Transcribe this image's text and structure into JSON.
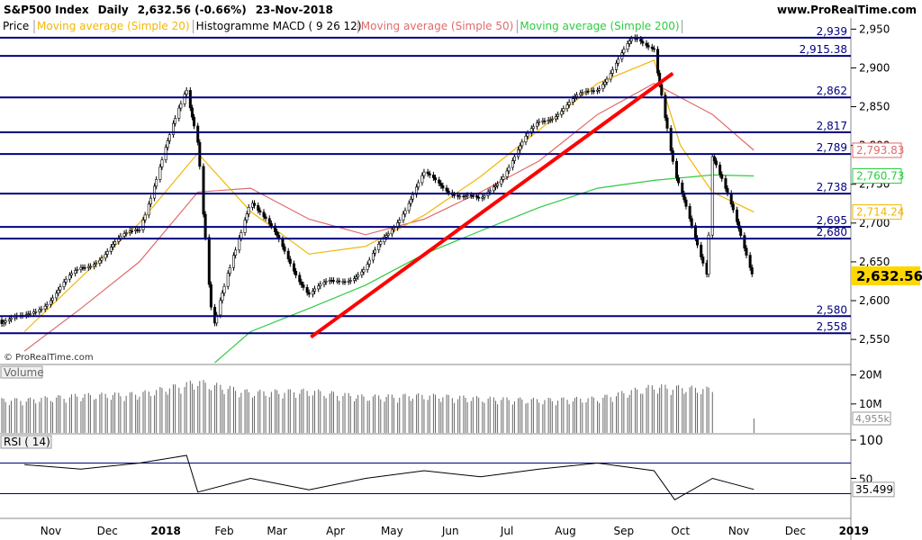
{
  "header": {
    "instrument": "S&P500 Index",
    "period": "Daily",
    "last": "2,632.56 (-0.66%)",
    "date": "23-Nov-2018",
    "site": "www.ProRealTime.com"
  },
  "legend": [
    {
      "label": "Price",
      "color": "#000000"
    },
    {
      "label": "Moving average (Simple 20)",
      "color": "#f2b705"
    },
    {
      "label": "Histogramme MACD ( 9 26 12)",
      "color": "#000000"
    },
    {
      "label": "Moving average (Simple 50)",
      "color": "#e06b6b"
    },
    {
      "label": "Moving average (Simple 200)",
      "color": "#2ecc40"
    }
  ],
  "watermark": "© ProRealTime.com",
  "colors": {
    "sma20": "#f2b705",
    "sma50": "#e06b6b",
    "sma200": "#2ecc40",
    "levels": "#00007f",
    "trendline": "#ff0000",
    "candle": "#000000",
    "last_badge": "#ffd700"
  },
  "chart_data": [
    {
      "type": "candlestick",
      "title": "S&P500 Index",
      "ylim": [
        2520,
        2962
      ],
      "y_ticks": [
        "2,950",
        "2,900",
        "2,850",
        "2,800",
        "2,750",
        "2,700",
        "2,650",
        "2,600",
        "2,550"
      ],
      "y_tick_values": [
        2950,
        2900,
        2850,
        2800,
        2750,
        2700,
        2650,
        2600,
        2550
      ],
      "x_labels": [
        "Nov",
        "Dec",
        "2018",
        "Feb",
        "Mar",
        "Apr",
        "May",
        "Jun",
        "Jul",
        "Aug",
        "Sep",
        "Oct",
        "Nov",
        "Dec",
        "2019"
      ],
      "x_label_dates": [
        "2017-11",
        "2017-12",
        "2018-01",
        "2018-02",
        "2018-03",
        "2018-04",
        "2018-05",
        "2018-06",
        "2018-07",
        "2018-08",
        "2018-09",
        "2018-10",
        "2018-11",
        "2018-12",
        "2019-01"
      ],
      "horizontal_levels": [
        {
          "value": 2939,
          "label": "2,939"
        },
        {
          "value": 2915.38,
          "label": "2,915.38"
        },
        {
          "value": 2862,
          "label": "2,862"
        },
        {
          "value": 2817,
          "label": "2,817"
        },
        {
          "value": 2789,
          "label": "2,789"
        },
        {
          "value": 2738,
          "label": "2,738"
        },
        {
          "value": 2695,
          "label": "2,695"
        },
        {
          "value": 2680,
          "label": "2,680"
        },
        {
          "value": 2580,
          "label": "2,580"
        },
        {
          "value": 2558,
          "label": "2,558"
        }
      ],
      "trendline": {
        "from": {
          "date": "2018-04-02",
          "value": 2553
        },
        "to": {
          "date": "2018-10-11",
          "value": 2893
        }
      },
      "last_value": {
        "value": 2632.56,
        "label": "2,632.56"
      },
      "series": [
        {
          "name": "Price",
          "dates": [
            "2017-11",
            "2017-12",
            "2018-01",
            "2018-01-26",
            "2018-02",
            "2018-02-09",
            "2018-03",
            "2018-04",
            "2018-05",
            "2018-06",
            "2018-07",
            "2018-08",
            "2018-09",
            "2018-09-20",
            "2018-10",
            "2018-10-12",
            "2018-10-29",
            "2018-11",
            "2018-11-23"
          ],
          "values": [
            2575,
            2640,
            2695,
            2872,
            2810,
            2560,
            2735,
            2610,
            2640,
            2760,
            2725,
            2830,
            2875,
            2935,
            2930,
            2760,
            2640,
            2790,
            2632.56
          ]
        },
        {
          "name": "Moving average (Simple 20)",
          "dates": [
            "2017-11",
            "2017-12",
            "2018-01",
            "2018-02",
            "2018-03",
            "2018-04",
            "2018-05",
            "2018-06",
            "2018-07",
            "2018-08",
            "2018-09",
            "2018-10",
            "2018-10-15",
            "2018-11",
            "2018-11-23"
          ],
          "values": [
            2560,
            2630,
            2700,
            2790,
            2715,
            2660,
            2670,
            2710,
            2760,
            2820,
            2880,
            2910,
            2800,
            2740,
            2714.24
          ]
        },
        {
          "name": "Moving average (Simple 50)",
          "dates": [
            "2017-11",
            "2017-12",
            "2018-01",
            "2018-02",
            "2018-03",
            "2018-04",
            "2018-05",
            "2018-06",
            "2018-07",
            "2018-08",
            "2018-09",
            "2018-10",
            "2018-11",
            "2018-11-23"
          ],
          "values": [
            2535,
            2590,
            2650,
            2740,
            2745,
            2705,
            2685,
            2705,
            2740,
            2780,
            2840,
            2880,
            2840,
            2793.83
          ]
        },
        {
          "name": "Moving average (Simple 200)",
          "dates": [
            "2018-02-10",
            "2018-03",
            "2018-04",
            "2018-05",
            "2018-06",
            "2018-07",
            "2018-08",
            "2018-09",
            "2018-10",
            "2018-11",
            "2018-11-23"
          ],
          "values": [
            2520,
            2560,
            2590,
            2620,
            2660,
            2690,
            2720,
            2745,
            2755,
            2762,
            2760.73
          ]
        }
      ],
      "value_tags": [
        {
          "series": "Moving average (Simple 50)",
          "label": "2,793.83"
        },
        {
          "series": "Moving average (Simple 200)",
          "label": "2,760.73"
        },
        {
          "series": "Moving average (Simple 20)",
          "label": "2,714.24"
        },
        {
          "series": "Price",
          "label": "2,632.56"
        }
      ]
    },
    {
      "type": "bar",
      "title": "Volume",
      "y_ticks": [
        "20M",
        "10M"
      ],
      "y_tick_values": [
        20000000,
        10000000
      ],
      "ylim": [
        0,
        23000000
      ],
      "last_value": {
        "value": 4955000,
        "label": "4,955k"
      },
      "series": [
        {
          "name": "Volume",
          "dates": [
            "2017-11",
            "2017-12",
            "2018-01",
            "2018-02",
            "2018-03",
            "2018-04",
            "2018-05",
            "2018-06",
            "2018-07",
            "2018-08",
            "2018-09",
            "2018-10",
            "2018-11",
            "2018-11-23"
          ],
          "values": [
            11000000,
            12500000,
            13000000,
            17000000,
            13500000,
            14000000,
            12000000,
            12500000,
            11500000,
            11000000,
            11500000,
            15500000,
            14500000,
            4955000
          ]
        }
      ]
    },
    {
      "type": "line",
      "title": "RSI ( 14)",
      "ylim": [
        0,
        100
      ],
      "y_ticks": [
        "100",
        "50"
      ],
      "y_tick_values": [
        100,
        50
      ],
      "bands": [
        70,
        30
      ],
      "last_value": {
        "value": 35.499,
        "label": "35.499"
      },
      "series": [
        {
          "name": "RSI ( 14)",
          "dates": [
            "2017-11",
            "2017-12",
            "2018-01",
            "2018-01-26",
            "2018-02",
            "2018-03",
            "2018-04",
            "2018-05",
            "2018-06",
            "2018-07",
            "2018-08",
            "2018-09",
            "2018-10",
            "2018-10-12",
            "2018-11",
            "2018-11-23"
          ],
          "values": [
            68,
            62,
            70,
            80,
            32,
            50,
            35,
            50,
            60,
            52,
            62,
            70,
            60,
            22,
            50,
            35.499
          ]
        }
      ]
    }
  ]
}
